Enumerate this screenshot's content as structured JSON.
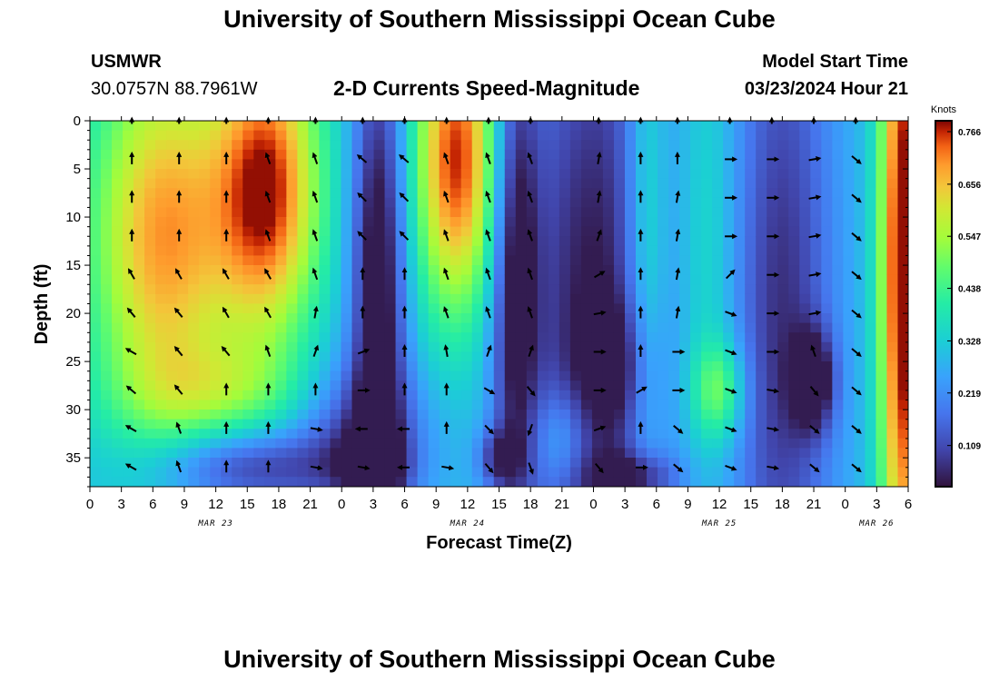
{
  "header": {
    "title": "University of Southern Mississippi Ocean Cube",
    "station": "USMWR",
    "coords": "30.0757N  88.7961W",
    "subtitle": "2-D Currents Speed-Magnitude",
    "model_label": "Model Start Time",
    "model_time": "03/23/2024 Hour 21"
  },
  "footer": {
    "title": "University of Southern Mississippi Ocean Cube"
  },
  "chart_data": {
    "type": "heatmap",
    "title": "2-D Currents Speed-Magnitude",
    "xlabel": "Forecast Time(Z)",
    "ylabel": "Depth (ft)",
    "ylim": [
      0,
      38
    ],
    "x_start_hour": 0,
    "x_end_hour": 78,
    "x_ticks": [
      "0",
      "3",
      "6",
      "9",
      "12",
      "15",
      "18",
      "21",
      "0",
      "3",
      "6",
      "9",
      "12",
      "15",
      "18",
      "21",
      "0",
      "3",
      "6",
      "9",
      "12",
      "15",
      "18",
      "21",
      "0",
      "3",
      "6"
    ],
    "y_ticks": [
      0,
      5,
      10,
      15,
      20,
      25,
      30,
      35
    ],
    "date_labels": [
      {
        "hour": 12,
        "label": "MAR 23"
      },
      {
        "hour": 36,
        "label": "MAR 24"
      },
      {
        "hour": 60,
        "label": "MAR 25"
      },
      {
        "hour": 75,
        "label": "MAR 26"
      }
    ],
    "colorbar": {
      "label": "Knots",
      "min": 0.0,
      "max": 0.766,
      "ticks": [
        "0.766",
        "0.656",
        "0.547",
        "0.438",
        "0.328",
        "0.219",
        "0.109"
      ]
    },
    "arrow_hours": [
      4,
      8.5,
      13,
      17,
      21.5,
      26,
      30,
      34,
      38,
      42,
      48.5,
      52.5,
      56,
      61,
      65,
      69,
      73
    ],
    "arrow_depths": [
      0,
      4,
      8,
      12,
      16,
      20,
      24,
      28,
      32,
      36
    ],
    "arrow_directions_deg": [
      [
        0,
        0,
        0,
        0,
        0,
        0,
        0,
        0,
        0,
        0,
        0,
        0,
        0,
        0,
        0,
        0,
        0
      ],
      [
        0,
        0,
        0,
        -20,
        -20,
        310,
        310,
        -20,
        -20,
        -20,
        10,
        0,
        0,
        90,
        90,
        80,
        130
      ],
      [
        0,
        0,
        0,
        -20,
        -20,
        315,
        315,
        -20,
        -20,
        -20,
        10,
        0,
        10,
        90,
        90,
        80,
        130
      ],
      [
        0,
        0,
        0,
        -20,
        -20,
        315,
        315,
        -20,
        -20,
        -20,
        20,
        0,
        10,
        90,
        90,
        80,
        130
      ],
      [
        -30,
        -30,
        -30,
        -30,
        -20,
        0,
        0,
        -20,
        -20,
        -20,
        60,
        0,
        10,
        45,
        90,
        80,
        130
      ],
      [
        -40,
        -40,
        -30,
        -30,
        10,
        0,
        0,
        -20,
        -20,
        -20,
        80,
        0,
        10,
        110,
        90,
        80,
        130
      ],
      [
        -60,
        -40,
        -40,
        -20,
        20,
        70,
        0,
        -10,
        20,
        20,
        90,
        0,
        90,
        110,
        90,
        340,
        130
      ],
      [
        -50,
        -40,
        0,
        0,
        0,
        90,
        0,
        0,
        120,
        140,
        90,
        60,
        90,
        110,
        100,
        140,
        130
      ],
      [
        -60,
        -20,
        0,
        0,
        100,
        270,
        270,
        0,
        135,
        200,
        70,
        0,
        130,
        110,
        100,
        130,
        130
      ],
      [
        -60,
        -20,
        0,
        0,
        100,
        100,
        270,
        100,
        140,
        160,
        140,
        90,
        130,
        110,
        100,
        130,
        130
      ]
    ]
  }
}
